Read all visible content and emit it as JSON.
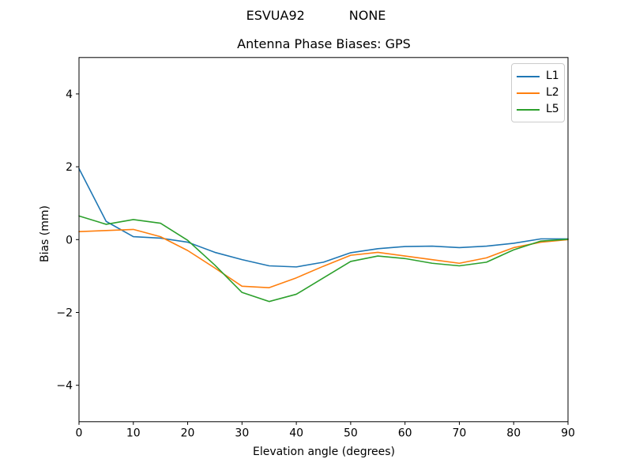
{
  "header": {
    "suptitle": "ESVUA92           NONE"
  },
  "chart_data": {
    "type": "line",
    "title": "Antenna Phase Biases: GPS",
    "xlabel": "Elevation angle (degrees)",
    "ylabel": "Bias (mm)",
    "xlim": [
      0,
      90
    ],
    "ylim": [
      -5,
      5
    ],
    "xticks": [
      0,
      10,
      20,
      30,
      40,
      50,
      60,
      70,
      80,
      90
    ],
    "yticks": [
      -4,
      -2,
      0,
      2,
      4
    ],
    "yticklabels": [
      "−4",
      "−2",
      "0",
      "2",
      "4"
    ],
    "grid": false,
    "legend_position": "upper right",
    "x": [
      0,
      5,
      10,
      15,
      20,
      25,
      30,
      35,
      40,
      45,
      50,
      55,
      60,
      65,
      70,
      75,
      80,
      85,
      90
    ],
    "series": [
      {
        "name": "L1",
        "color": "#1f77b4",
        "values": [
          1.95,
          0.5,
          0.08,
          0.04,
          -0.07,
          -0.35,
          -0.55,
          -0.72,
          -0.75,
          -0.62,
          -0.36,
          -0.25,
          -0.19,
          -0.18,
          -0.22,
          -0.18,
          -0.1,
          0.02,
          0.02
        ]
      },
      {
        "name": "L2",
        "color": "#ff7f0e",
        "values": [
          0.22,
          0.25,
          0.28,
          0.08,
          -0.3,
          -0.78,
          -1.28,
          -1.32,
          -1.05,
          -0.73,
          -0.43,
          -0.35,
          -0.45,
          -0.55,
          -0.65,
          -0.5,
          -0.22,
          -0.07,
          0.0
        ]
      },
      {
        "name": "L5",
        "color": "#2ca02c",
        "values": [
          0.65,
          0.42,
          0.55,
          0.45,
          -0.02,
          -0.7,
          -1.45,
          -1.7,
          -1.5,
          -1.05,
          -0.6,
          -0.45,
          -0.52,
          -0.65,
          -0.72,
          -0.62,
          -0.28,
          -0.04,
          0.01
        ]
      }
    ]
  }
}
